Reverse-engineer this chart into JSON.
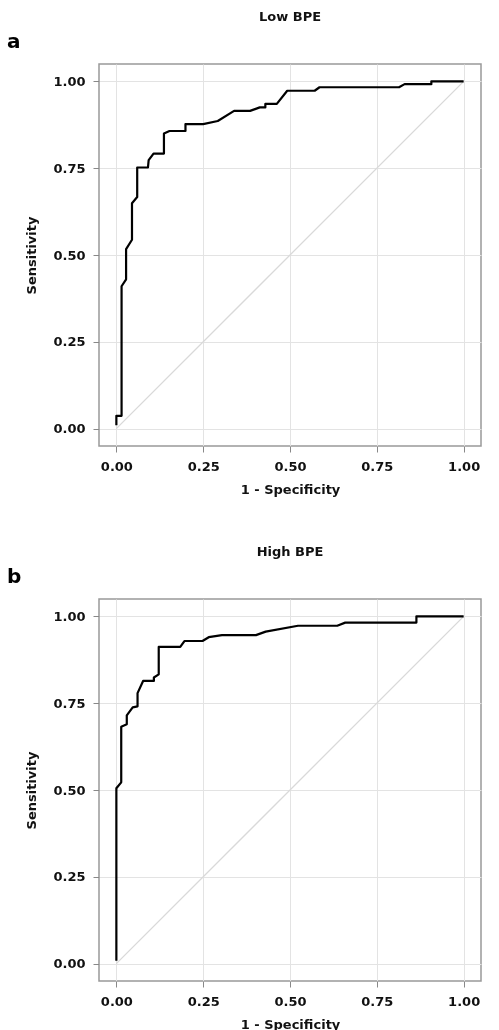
{
  "chart_data": [
    {
      "type": "line",
      "title": "Low BPE",
      "xlabel": "1 - Specificity",
      "ylabel": "Sensitivity",
      "annotations": [
        "a"
      ],
      "grid": true,
      "xlim": [
        -0.05,
        1.05
      ],
      "ylim": [
        -0.05,
        1.05
      ],
      "xticks": [
        {
          "value": 0,
          "label": "0.00"
        },
        {
          "value": 0.25,
          "label": "0.25"
        },
        {
          "value": 0.5,
          "label": "0.50"
        },
        {
          "value": 0.75,
          "label": "0.75"
        },
        {
          "value": 1,
          "label": "1.00"
        }
      ],
      "yticks": [
        {
          "value": 0,
          "label": "0.00"
        },
        {
          "value": 0.25,
          "label": "0.25"
        },
        {
          "value": 0.5,
          "label": "0.50"
        },
        {
          "value": 0.75,
          "label": "0.75"
        },
        {
          "value": 1,
          "label": "1.00"
        }
      ],
      "series": [
        {
          "color": "#d9d9d9",
          "x": [
            0,
            1
          ],
          "values": [
            0,
            1
          ]
        },
        {
          "color": "#000000",
          "x": [
            0,
            0,
            0.015,
            0.015,
            0.028,
            0.028,
            0.045,
            0.045,
            0.06,
            0.06,
            0.091,
            0.093,
            0.107,
            0.137,
            0.137,
            0.153,
            0.199,
            0.199,
            0.25,
            0.292,
            0.339,
            0.385,
            0.413,
            0.429,
            0.429,
            0.462,
            0.492,
            0.571,
            0.585,
            0.814,
            0.83,
            0.907,
            0.907,
            1
          ],
          "values": [
            0.01,
            0.037,
            0.037,
            0.41,
            0.43,
            0.517,
            0.544,
            0.649,
            0.667,
            0.752,
            0.752,
            0.773,
            0.792,
            0.792,
            0.85,
            0.857,
            0.857,
            0.877,
            0.877,
            0.886,
            0.915,
            0.915,
            0.925,
            0.925,
            0.935,
            0.935,
            0.973,
            0.973,
            0.983,
            0.983,
            0.992,
            0.992,
            1,
            1
          ]
        }
      ]
    },
    {
      "type": "line",
      "title": "High BPE",
      "xlabel": "1 - Specificity",
      "ylabel": "Sensitivity",
      "annotations": [
        "b"
      ],
      "grid": true,
      "xlim": [
        -0.05,
        1.05
      ],
      "ylim": [
        -0.05,
        1.05
      ],
      "xticks": [
        {
          "value": 0,
          "label": "0.00"
        },
        {
          "value": 0.25,
          "label": "0.25"
        },
        {
          "value": 0.5,
          "label": "0.50"
        },
        {
          "value": 0.75,
          "label": "0.75"
        },
        {
          "value": 1,
          "label": "1.00"
        }
      ],
      "yticks": [
        {
          "value": 0,
          "label": "0.00"
        },
        {
          "value": 0.25,
          "label": "0.25"
        },
        {
          "value": 0.5,
          "label": "0.50"
        },
        {
          "value": 0.75,
          "label": "0.75"
        },
        {
          "value": 1,
          "label": "1.00"
        }
      ],
      "series": [
        {
          "color": "#d9d9d9",
          "x": [
            0,
            1
          ],
          "values": [
            0,
            1
          ]
        },
        {
          "color": "#000000",
          "x": [
            0,
            0,
            0.014,
            0.014,
            0.03,
            0.03,
            0.047,
            0.061,
            0.061,
            0.077,
            0.108,
            0.108,
            0.122,
            0.122,
            0.184,
            0.196,
            0.248,
            0.266,
            0.304,
            0.402,
            0.43,
            0.523,
            0.636,
            0.659,
            0.864,
            0.864,
            1
          ],
          "values": [
            0.008,
            0.505,
            0.522,
            0.682,
            0.689,
            0.715,
            0.738,
            0.741,
            0.779,
            0.814,
            0.814,
            0.824,
            0.833,
            0.912,
            0.912,
            0.929,
            0.929,
            0.94,
            0.946,
            0.946,
            0.956,
            0.973,
            0.973,
            0.982,
            0.982,
            1,
            1
          ]
        }
      ]
    }
  ]
}
